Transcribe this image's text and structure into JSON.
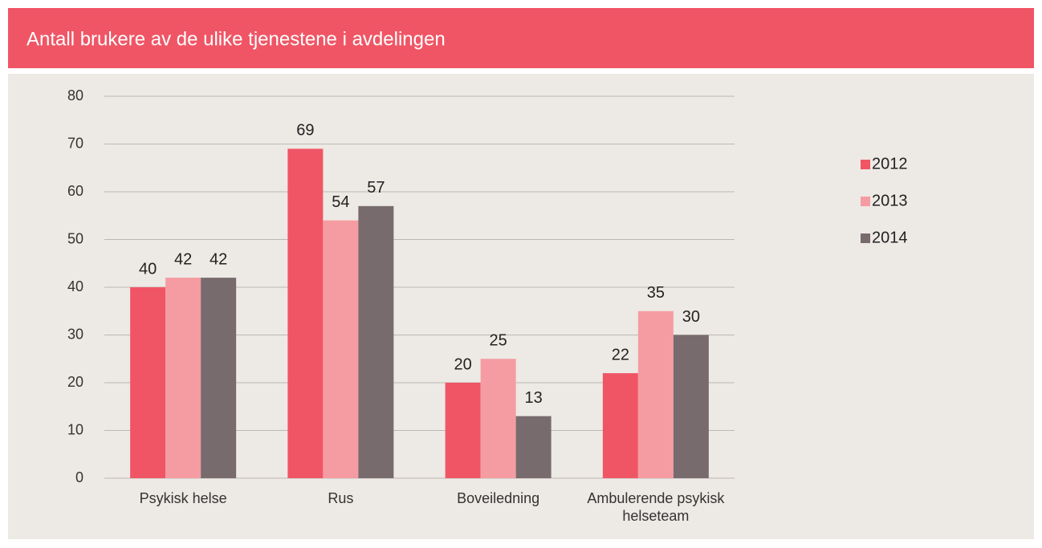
{
  "chart_data": {
    "type": "bar",
    "title": "Antall brukere av de ulike tjenestene i avdelingen",
    "categories": [
      "Psykisk helse",
      "Rus",
      "Boveiledning",
      "Ambulerende psykisk helseteam"
    ],
    "series": [
      {
        "name": "2012",
        "color": "#f05565",
        "values": [
          40,
          69,
          20,
          22
        ]
      },
      {
        "name": "2013",
        "color": "#f59ca2",
        "values": [
          42,
          54,
          25,
          35
        ]
      },
      {
        "name": "2014",
        "color": "#786b6e",
        "values": [
          42,
          57,
          13,
          30
        ]
      }
    ],
    "ylim": [
      0,
      80
    ],
    "yticks": [
      0,
      10,
      20,
      30,
      40,
      50,
      60,
      70,
      80
    ],
    "grid": true,
    "legend": "right"
  }
}
